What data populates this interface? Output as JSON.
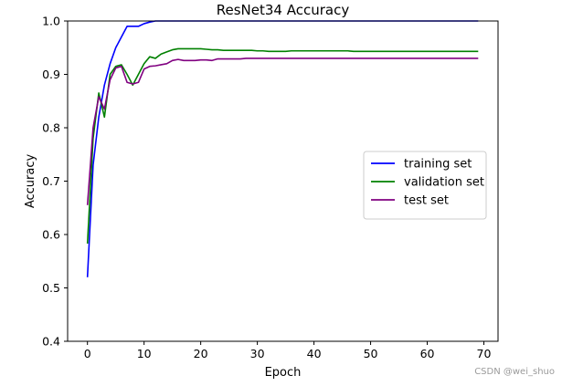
{
  "chart_data": {
    "type": "line",
    "title": "ResNet34 Accuracy",
    "xlabel": "Epoch",
    "ylabel": "Accuracy",
    "xlim": [
      -3.5,
      72.5
    ],
    "ylim": [
      0.4,
      1.0
    ],
    "xticks": [
      0,
      10,
      20,
      30,
      40,
      50,
      60,
      70
    ],
    "yticks": [
      0.4,
      0.5,
      0.6,
      0.7,
      0.8,
      0.9,
      1.0
    ],
    "grid": false,
    "legend_position": "center-right",
    "series": [
      {
        "name": "training set",
        "color": "#0000ff",
        "x": [
          0,
          1,
          2,
          3,
          4,
          5,
          6,
          7,
          8,
          9,
          10,
          11,
          12,
          13,
          14,
          15,
          16,
          17,
          18,
          19,
          20,
          21,
          22,
          23,
          24,
          25,
          26,
          27,
          28,
          29,
          30,
          31,
          32,
          33,
          34,
          35,
          36,
          37,
          38,
          39,
          40,
          41,
          42,
          43,
          44,
          45,
          46,
          47,
          48,
          49,
          50,
          51,
          52,
          53,
          54,
          55,
          56,
          57,
          58,
          59,
          60,
          61,
          62,
          63,
          64,
          65,
          66,
          67,
          68,
          69
        ],
        "y": [
          0.52,
          0.73,
          0.82,
          0.88,
          0.92,
          0.95,
          0.97,
          0.99,
          0.99,
          0.99,
          0.995,
          0.998,
          1.0,
          1.0,
          1.0,
          1.0,
          1.0,
          1.0,
          1.0,
          1.0,
          1.0,
          1.0,
          1.0,
          1.0,
          1.0,
          1.0,
          1.0,
          1.0,
          1.0,
          1.0,
          1.0,
          1.0,
          1.0,
          1.0,
          1.0,
          1.0,
          1.0,
          1.0,
          1.0,
          1.0,
          1.0,
          1.0,
          1.0,
          1.0,
          1.0,
          1.0,
          1.0,
          1.0,
          1.0,
          1.0,
          1.0,
          1.0,
          1.0,
          1.0,
          1.0,
          1.0,
          1.0,
          1.0,
          1.0,
          1.0,
          1.0,
          1.0,
          1.0,
          1.0,
          1.0,
          1.0,
          1.0,
          1.0,
          1.0,
          1.0
        ]
      },
      {
        "name": "validation set",
        "color": "#008000",
        "x": [
          0,
          1,
          2,
          3,
          4,
          5,
          6,
          7,
          8,
          9,
          10,
          11,
          12,
          13,
          14,
          15,
          16,
          17,
          18,
          19,
          20,
          21,
          22,
          23,
          24,
          25,
          26,
          27,
          28,
          29,
          30,
          31,
          32,
          33,
          34,
          35,
          36,
          37,
          38,
          39,
          40,
          41,
          42,
          43,
          44,
          45,
          46,
          47,
          48,
          49,
          50,
          51,
          52,
          53,
          54,
          55,
          56,
          57,
          58,
          59,
          60,
          61,
          62,
          63,
          64,
          65,
          66,
          67,
          68,
          69
        ],
        "y": [
          0.583,
          0.78,
          0.865,
          0.82,
          0.9,
          0.915,
          0.918,
          0.9,
          0.88,
          0.9,
          0.92,
          0.933,
          0.93,
          0.938,
          0.942,
          0.946,
          0.948,
          0.948,
          0.948,
          0.948,
          0.948,
          0.947,
          0.946,
          0.946,
          0.945,
          0.945,
          0.945,
          0.945,
          0.945,
          0.945,
          0.944,
          0.944,
          0.943,
          0.943,
          0.943,
          0.943,
          0.944,
          0.944,
          0.944,
          0.944,
          0.944,
          0.944,
          0.944,
          0.944,
          0.944,
          0.944,
          0.944,
          0.943,
          0.943,
          0.943,
          0.943,
          0.943,
          0.943,
          0.943,
          0.943,
          0.943,
          0.943,
          0.943,
          0.943,
          0.943,
          0.943,
          0.943,
          0.943,
          0.943,
          0.943,
          0.943,
          0.943,
          0.943,
          0.943,
          0.943
        ]
      },
      {
        "name": "test set",
        "color": "#800080",
        "x": [
          0,
          1,
          2,
          3,
          4,
          5,
          6,
          7,
          8,
          9,
          10,
          11,
          12,
          13,
          14,
          15,
          16,
          17,
          18,
          19,
          20,
          21,
          22,
          23,
          24,
          25,
          26,
          27,
          28,
          29,
          30,
          31,
          32,
          33,
          34,
          35,
          36,
          37,
          38,
          39,
          40,
          41,
          42,
          43,
          44,
          45,
          46,
          47,
          48,
          49,
          50,
          51,
          52,
          53,
          54,
          55,
          56,
          57,
          58,
          59,
          60,
          61,
          62,
          63,
          64,
          65,
          66,
          67,
          68,
          69
        ],
        "y": [
          0.655,
          0.8,
          0.858,
          0.835,
          0.89,
          0.912,
          0.915,
          0.885,
          0.882,
          0.885,
          0.91,
          0.915,
          0.916,
          0.918,
          0.92,
          0.926,
          0.928,
          0.926,
          0.926,
          0.926,
          0.927,
          0.927,
          0.926,
          0.929,
          0.929,
          0.929,
          0.929,
          0.929,
          0.93,
          0.93,
          0.93,
          0.93,
          0.93,
          0.93,
          0.93,
          0.93,
          0.93,
          0.93,
          0.93,
          0.93,
          0.93,
          0.93,
          0.93,
          0.93,
          0.93,
          0.93,
          0.93,
          0.93,
          0.93,
          0.93,
          0.93,
          0.93,
          0.93,
          0.93,
          0.93,
          0.93,
          0.93,
          0.93,
          0.93,
          0.93,
          0.93,
          0.93,
          0.93,
          0.93,
          0.93,
          0.93,
          0.93,
          0.93,
          0.93,
          0.93
        ]
      }
    ]
  },
  "watermark": "CSDN @wei_shuo"
}
